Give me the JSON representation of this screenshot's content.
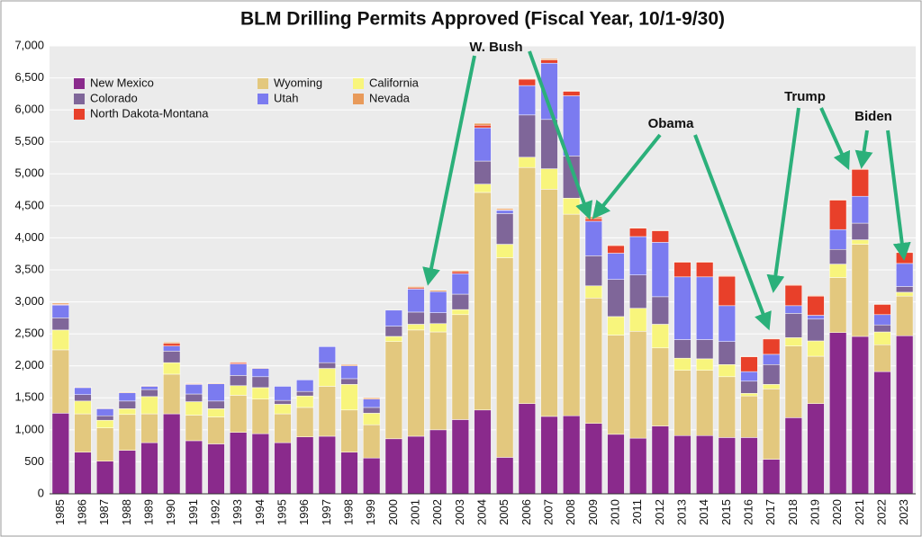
{
  "chart_data": {
    "type": "stacked_bar",
    "title": "BLM Drilling Permits Approved (Fiscal Year, 10/1-9/30)",
    "categories": [
      "1985",
      "1986",
      "1987",
      "1988",
      "1989",
      "1990",
      "1991",
      "1992",
      "1993",
      "1994",
      "1995",
      "1996",
      "1997",
      "1998",
      "1999",
      "2000",
      "2001",
      "2002",
      "2003",
      "2004",
      "2005",
      "2006",
      "2007",
      "2008",
      "2009",
      "2010",
      "2011",
      "2012",
      "2013",
      "2014",
      "2015",
      "2016",
      "2017",
      "2018",
      "2019",
      "2020",
      "2021",
      "2022",
      "2023"
    ],
    "series": [
      {
        "name": "New Mexico",
        "color": "#8a2a8c",
        "values": [
          1260,
          650,
          510,
          680,
          800,
          1250,
          830,
          780,
          960,
          940,
          800,
          890,
          900,
          650,
          560,
          860,
          900,
          1000,
          1160,
          1310,
          570,
          1410,
          1210,
          1220,
          1100,
          930,
          870,
          1060,
          910,
          910,
          880,
          880,
          540,
          1190,
          1410,
          2520,
          2460,
          1910,
          2470
        ]
      },
      {
        "name": "Wyoming",
        "color": "#e3c87e",
        "values": [
          990,
          600,
          520,
          560,
          450,
          620,
          400,
          420,
          580,
          540,
          450,
          460,
          780,
          660,
          520,
          1520,
          1660,
          1530,
          1640,
          3400,
          3120,
          3690,
          3550,
          3150,
          1960,
          1550,
          1670,
          1220,
          1020,
          1020,
          950,
          650,
          1100,
          1120,
          740,
          860,
          1440,
          420,
          620
        ]
      },
      {
        "name": "California",
        "color": "#f8f57c",
        "values": [
          310,
          200,
          120,
          90,
          270,
          180,
          210,
          130,
          150,
          180,
          150,
          180,
          280,
          400,
          180,
          80,
          90,
          130,
          80,
          130,
          210,
          160,
          320,
          250,
          190,
          290,
          360,
          370,
          190,
          180,
          190,
          40,
          70,
          130,
          240,
          210,
          70,
          200,
          60
        ]
      },
      {
        "name": "Colorado",
        "color": "#7f6699",
        "values": [
          190,
          100,
          70,
          120,
          110,
          180,
          120,
          120,
          160,
          170,
          60,
          70,
          90,
          90,
          90,
          160,
          190,
          170,
          240,
          360,
          480,
          660,
          770,
          660,
          470,
          580,
          520,
          430,
          290,
          300,
          360,
          190,
          310,
          380,
          340,
          230,
          260,
          110,
          90
        ]
      },
      {
        "name": "Utah",
        "color": "#7b7bf0",
        "values": [
          200,
          110,
          110,
          130,
          50,
          80,
          150,
          270,
          180,
          130,
          220,
          180,
          250,
          200,
          130,
          250,
          360,
          330,
          320,
          520,
          50,
          460,
          880,
          940,
          540,
          410,
          600,
          850,
          980,
          980,
          560,
          150,
          160,
          120,
          60,
          310,
          420,
          160,
          360
        ]
      },
      {
        "name": "North Dakota-Montana",
        "color": "#e8402a",
        "values": [
          10,
          0,
          0,
          0,
          0,
          40,
          10,
          0,
          20,
          0,
          0,
          0,
          0,
          0,
          0,
          0,
          20,
          0,
          30,
          40,
          10,
          100,
          50,
          70,
          40,
          120,
          130,
          180,
          230,
          230,
          460,
          230,
          240,
          320,
          300,
          460,
          420,
          160,
          170
        ]
      },
      {
        "name": "Nevada",
        "color": "#e89a5a",
        "values": [
          20,
          10,
          10,
          10,
          10,
          20,
          10,
          10,
          10,
          10,
          0,
          0,
          0,
          20,
          20,
          0,
          20,
          20,
          20,
          30,
          20,
          10,
          20,
          10,
          30,
          10,
          10,
          10,
          10,
          10,
          10,
          10,
          10,
          10,
          10,
          10,
          10,
          10,
          10
        ]
      }
    ],
    "ylim": [
      0,
      7000
    ],
    "yticks": [
      0,
      {
        "value": 500,
        "label": "500"
      },
      {
        "value": 1000,
        "label": "1,000"
      },
      {
        "value": 1500,
        "label": "1,500"
      },
      {
        "value": 2000,
        "label": "2,000"
      },
      {
        "value": 2500,
        "label": "2,500"
      },
      {
        "value": 3000,
        "label": "3,000"
      },
      {
        "value": 3500,
        "label": "3,500"
      },
      {
        "value": 4000,
        "label": "4,000"
      },
      {
        "value": 4500,
        "label": "4,500"
      },
      {
        "value": 5000,
        "label": "5,000"
      },
      {
        "value": 5500,
        "label": "5,500"
      },
      {
        "value": 6000,
        "label": "6,000"
      },
      {
        "value": 6500,
        "label": "6,500"
      },
      {
        "value": 7000,
        "label": "7,000"
      }
    ],
    "grid": true,
    "annotations": [
      "W. Bush",
      "Obama",
      "Trump",
      "Biden"
    ]
  }
}
